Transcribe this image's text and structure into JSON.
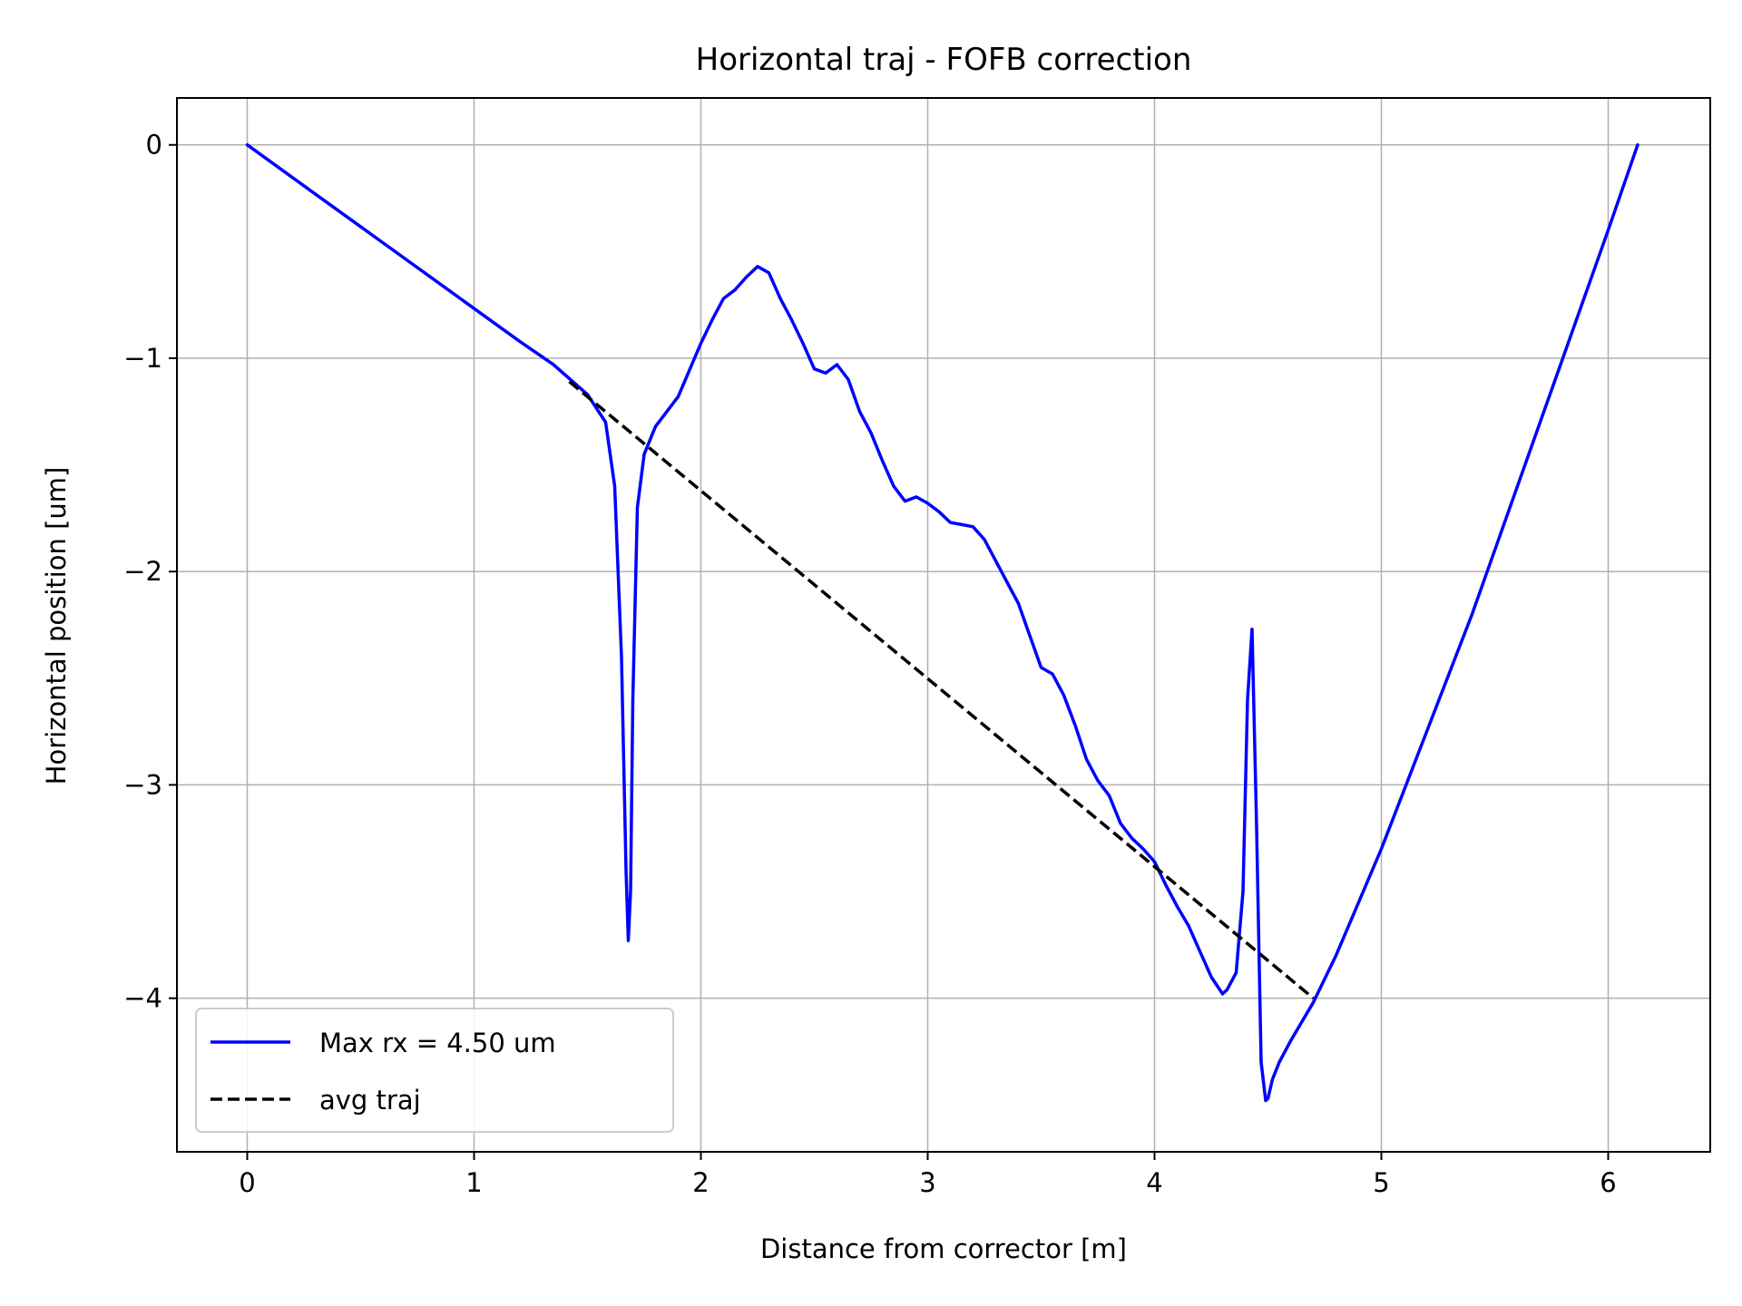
{
  "chart_data": {
    "type": "line",
    "title": "Horizontal traj - FOFB correction",
    "xlabel": "Distance from corrector [m]",
    "ylabel": "Horizontal position [um]",
    "xlim": [
      -0.31,
      6.45
    ],
    "ylim": [
      -4.72,
      0.22
    ],
    "xticks": [
      0,
      1,
      2,
      3,
      4,
      5,
      6
    ],
    "xtick_labels": [
      "0",
      "1",
      "2",
      "3",
      "4",
      "5",
      "6"
    ],
    "yticks": [
      0,
      -1,
      -2,
      -3,
      -4
    ],
    "ytick_labels": [
      "0",
      "−1",
      "−2",
      "−3",
      "−4"
    ],
    "grid": true,
    "legend_position": "lower-left",
    "series": [
      {
        "name": "Max rx = 4.50 um",
        "color": "#0000ff",
        "style": "solid",
        "x": [
          0,
          0.3,
          0.6,
          0.9,
          1.2,
          1.35,
          1.5,
          1.58,
          1.62,
          1.65,
          1.67,
          1.68,
          1.69,
          1.7,
          1.72,
          1.75,
          1.8,
          1.9,
          2.0,
          2.05,
          2.1,
          2.15,
          2.2,
          2.25,
          2.3,
          2.35,
          2.4,
          2.45,
          2.5,
          2.55,
          2.6,
          2.65,
          2.7,
          2.75,
          2.8,
          2.85,
          2.9,
          2.95,
          3.0,
          3.05,
          3.1,
          3.15,
          3.2,
          3.25,
          3.3,
          3.35,
          3.4,
          3.45,
          3.5,
          3.55,
          3.6,
          3.65,
          3.7,
          3.75,
          3.8,
          3.85,
          3.9,
          3.95,
          4.0,
          4.05,
          4.1,
          4.15,
          4.2,
          4.25,
          4.3,
          4.32,
          4.36,
          4.39,
          4.41,
          4.43,
          4.45,
          4.47,
          4.49,
          4.5,
          4.52,
          4.55,
          4.6,
          4.7,
          4.8,
          5.0,
          5.2,
          5.4,
          5.6,
          5.8,
          6.0,
          6.13
        ],
        "y": [
          0,
          -0.23,
          -0.46,
          -0.69,
          -0.92,
          -1.03,
          -1.17,
          -1.3,
          -1.6,
          -2.4,
          -3.4,
          -3.73,
          -3.5,
          -2.6,
          -1.7,
          -1.45,
          -1.32,
          -1.18,
          -0.93,
          -0.82,
          -0.72,
          -0.68,
          -0.62,
          -0.57,
          -0.6,
          -0.72,
          -0.82,
          -0.93,
          -1.05,
          -1.07,
          -1.03,
          -1.1,
          -1.25,
          -1.35,
          -1.48,
          -1.6,
          -1.67,
          -1.65,
          -1.68,
          -1.72,
          -1.77,
          -1.78,
          -1.79,
          -1.85,
          -1.95,
          -2.05,
          -2.15,
          -2.3,
          -2.45,
          -2.48,
          -2.58,
          -2.72,
          -2.88,
          -2.98,
          -3.05,
          -3.18,
          -3.25,
          -3.3,
          -3.36,
          -3.47,
          -3.57,
          -3.66,
          -3.78,
          -3.9,
          -3.98,
          -3.96,
          -3.88,
          -3.5,
          -2.6,
          -2.27,
          -3.2,
          -4.3,
          -4.48,
          -4.47,
          -4.38,
          -4.3,
          -4.2,
          -4.02,
          -3.8,
          -3.3,
          -2.75,
          -2.2,
          -1.6,
          -1.0,
          -0.4,
          0.0
        ]
      },
      {
        "name": "avg traj",
        "color": "#000000",
        "style": "dashed",
        "x": [
          1.42,
          4.7
        ],
        "y": [
          -1.11,
          -4.0
        ]
      }
    ]
  }
}
